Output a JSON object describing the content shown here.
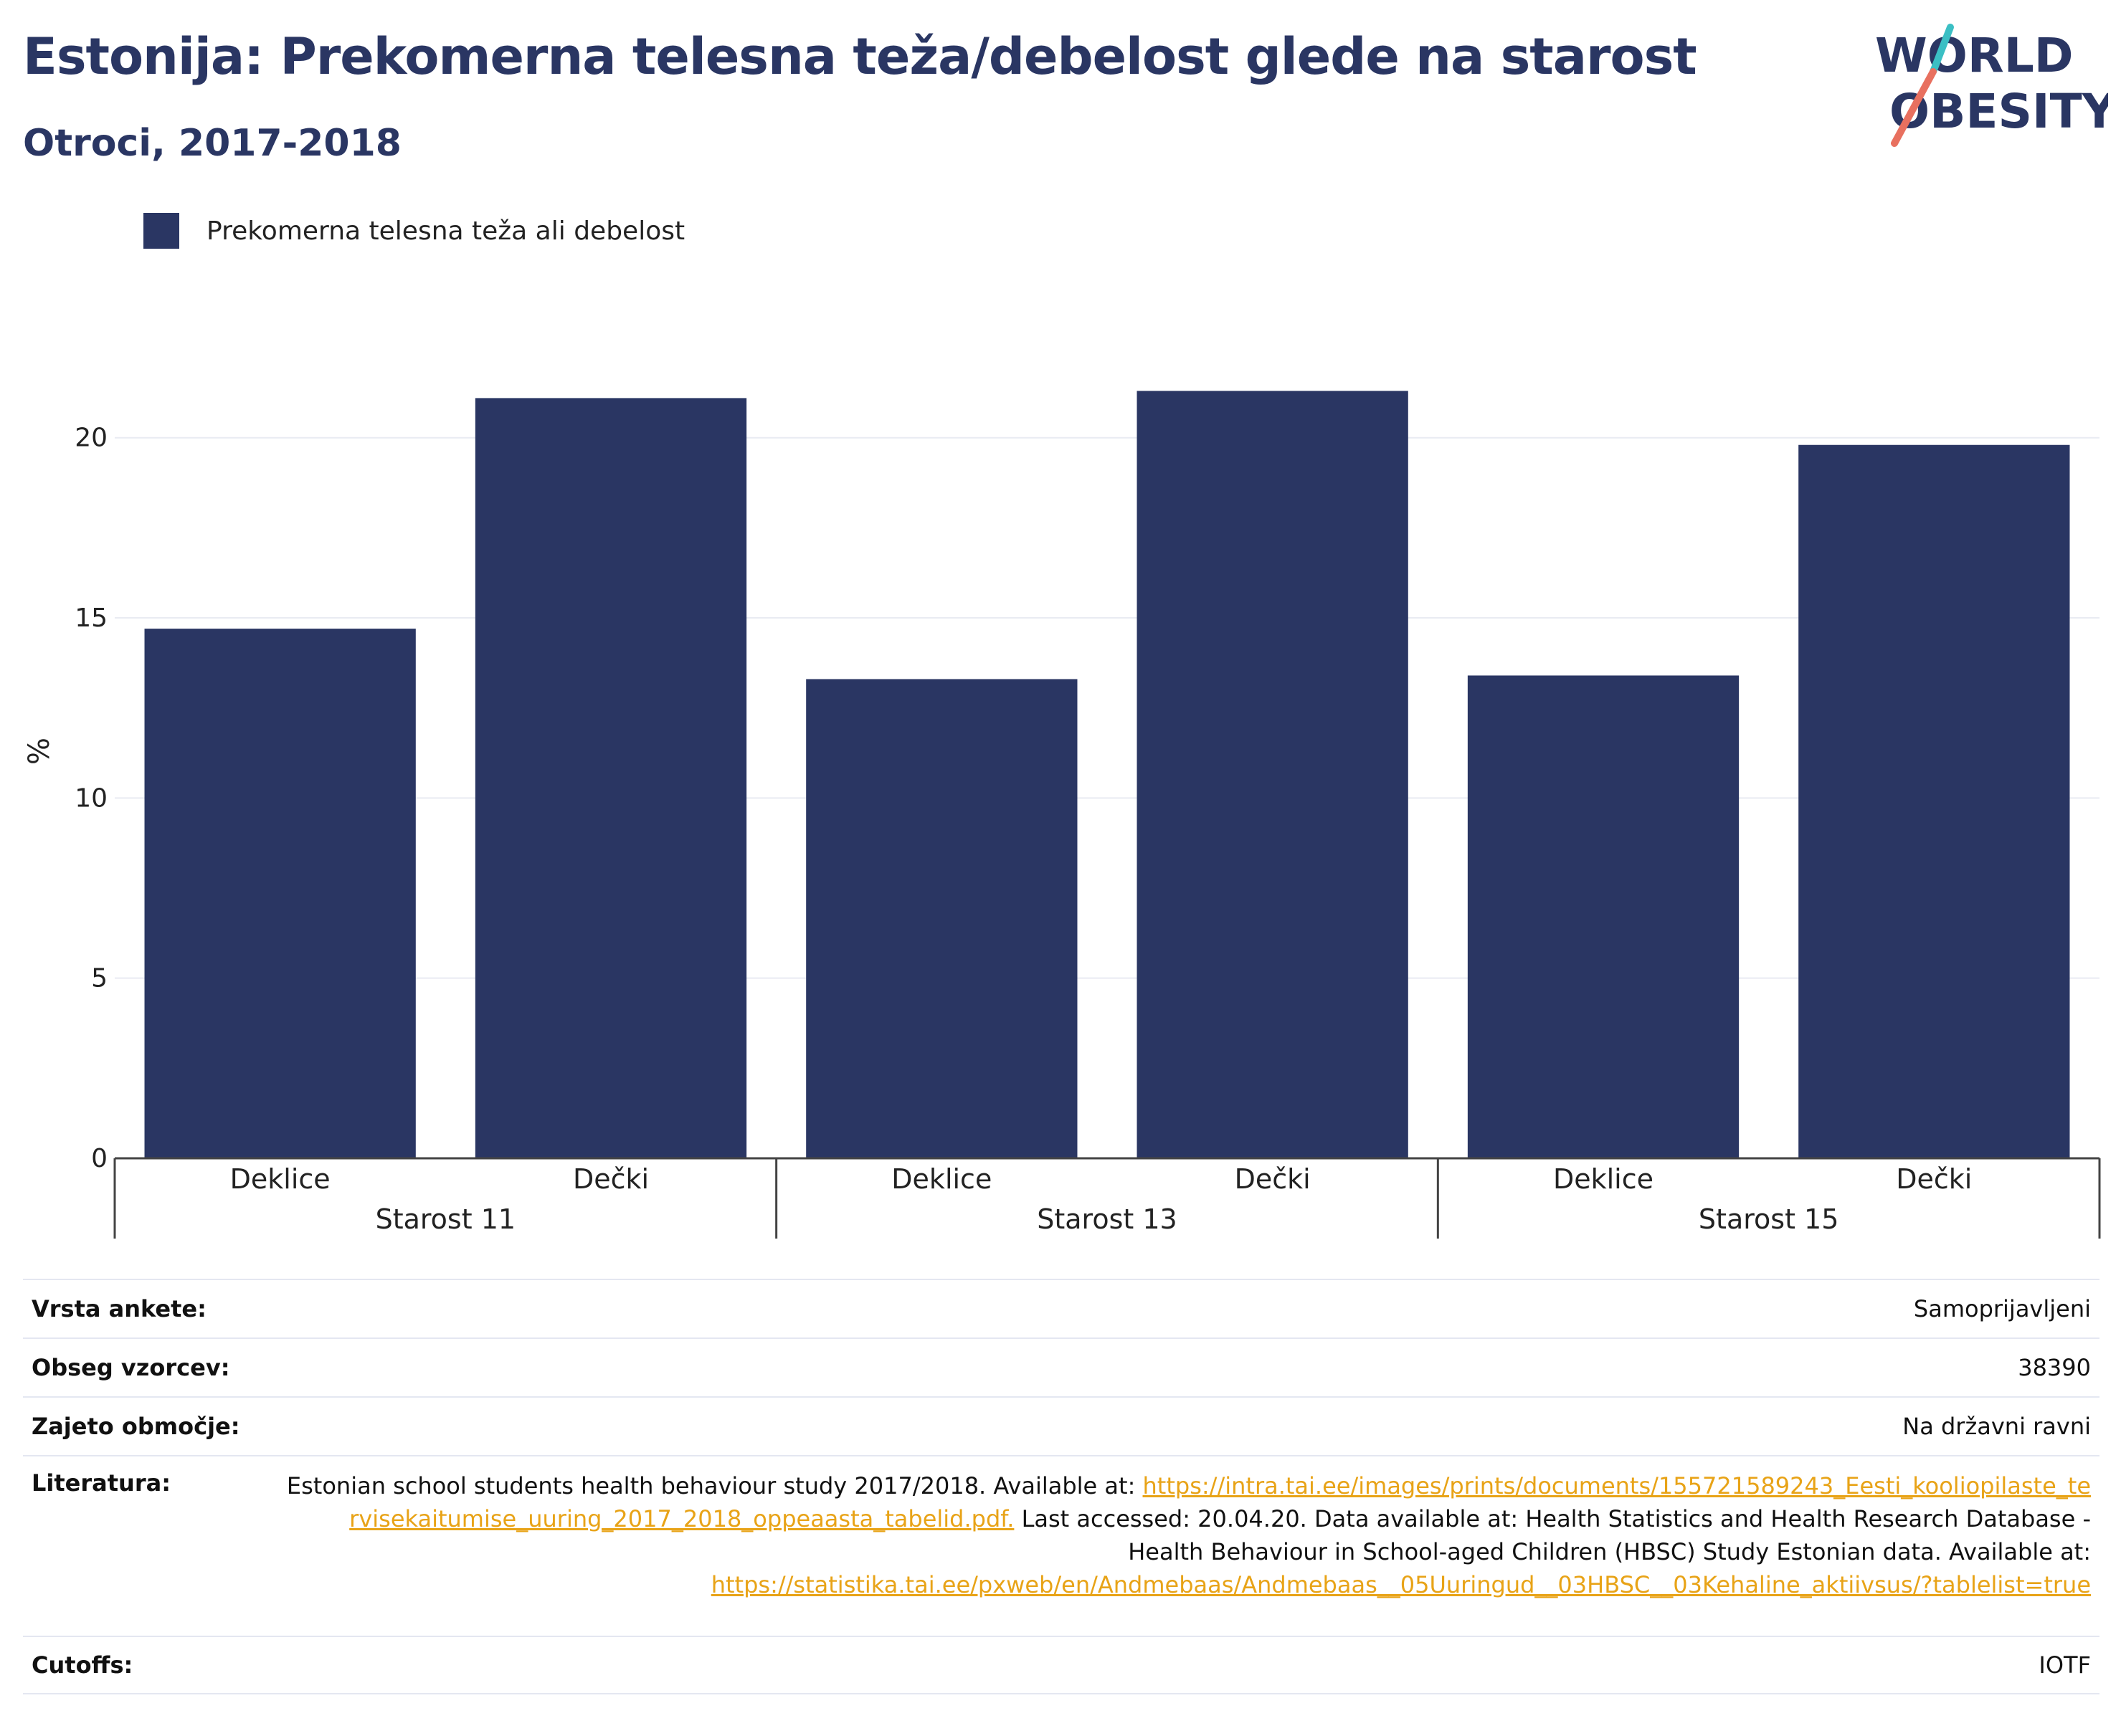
{
  "title": "Estonija: Prekomerna telesna teža/debelost glede na starost",
  "subtitle": "Otroci, 2017-2018",
  "logo": {
    "line1": "WORLD",
    "line2": "OBESITY",
    "accent_colors": [
      "#3bbfc4",
      "#e8705f"
    ]
  },
  "colors": {
    "bar": "#2a3663",
    "text": "#2a3663",
    "link": "#e8a317",
    "grid": "#e9ebf2"
  },
  "chart_data": {
    "type": "bar",
    "ylabel": "%",
    "ylim": [
      0,
      22.6
    ],
    "yticks": [
      0,
      5,
      10,
      15,
      20
    ],
    "grid": true,
    "legend_position": "top-left",
    "series": [
      {
        "name": "Prekomerna telesna teža ali debelost",
        "values": [
          14.7,
          21.1,
          13.3,
          21.3,
          13.4,
          19.8
        ]
      }
    ],
    "categories": [
      "Deklice",
      "Dečki",
      "Deklice",
      "Dečki",
      "Deklice",
      "Dečki"
    ],
    "groups": [
      "Starost 11",
      "Starost 13",
      "Starost 15"
    ]
  },
  "meta": {
    "survey_type": {
      "label": "Vrsta ankete:",
      "value": "Samoprijavljeni"
    },
    "sample_size": {
      "label": "Obseg vzorcev:",
      "value": "38390"
    },
    "area": {
      "label": "Zajeto območje:",
      "value": "Na državni ravni"
    },
    "literature": {
      "label": "Literatura:",
      "text1": "Estonian school students health behaviour study 2017/2018. Available at:",
      "link1": "https://intra.tai.ee/images/prints/documents/155721589243_Eesti_kooliopilaste_tervisekaitumise_uuring_2017_2018_oppeaasta_tabelid.pdf.",
      "text2": "Last accessed: 20.04.20. Data available at: Health Statistics and Health Research Database - Health Behaviour in School-aged Children (HBSC) Study Estonian data. Available at:",
      "link2": "https://statistika.tai.ee/pxweb/en/Andmebaas/Andmebaas__05Uuringud__03HBSC__03Kehaline_aktiivsus/?tablelist=true"
    },
    "cutoffs": {
      "label": "Cutoffs:",
      "value": "IOTF"
    }
  }
}
